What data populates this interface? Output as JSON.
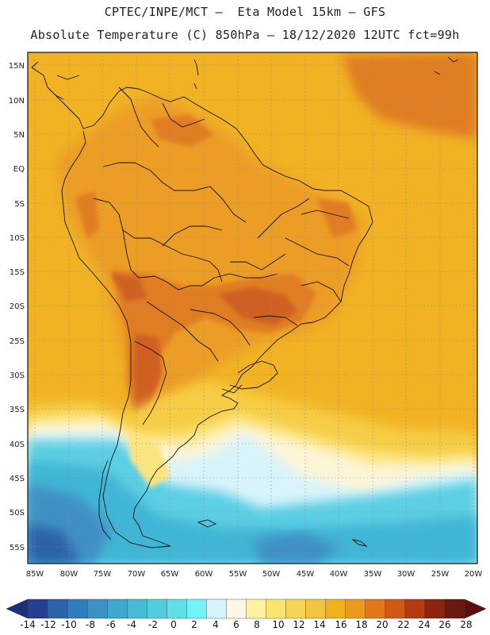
{
  "title_line1": "CPTEC/INPE/MCT –  Eta Model 15km – GFS",
  "title_line2": "Absolute Temperature (C) 850hPa – 18/12/2020 12UTC fct=99h",
  "lat_labels": [
    "15N",
    "10N",
    "5N",
    "EQ",
    "5S",
    "10S",
    "15S",
    "20S",
    "25S",
    "30S",
    "35S",
    "40S",
    "45S",
    "50S",
    "55S"
  ],
  "lon_labels": [
    "85W",
    "80W",
    "75W",
    "70W",
    "65W",
    "60W",
    "55W",
    "50W",
    "45W",
    "40W",
    "35W",
    "30W",
    "25W",
    "20W"
  ],
  "colorbar": {
    "labels": [
      "-14",
      "-12",
      "-10",
      "-8",
      "-6",
      "-4",
      "-2",
      "0",
      "2",
      "4",
      "6",
      "8",
      "10",
      "12",
      "14",
      "16",
      "18",
      "20",
      "22",
      "24",
      "26",
      "28"
    ],
    "colors": [
      "#263f93",
      "#2b63a9",
      "#2f7dbb",
      "#3b92c4",
      "#3ea8cd",
      "#44bcd6",
      "#52cde0",
      "#5fdfe9",
      "#74f3f6",
      "#d6f5fa",
      "#fdf8e6",
      "#fdf2a0",
      "#fbe46d",
      "#f7d455",
      "#f3c43e",
      "#f0b21c",
      "#ec9a1d",
      "#e1761a",
      "#d25818",
      "#b43a12",
      "#8e2410",
      "#6b1810"
    ],
    "left_arrow_color": "#1e2f7a",
    "right_arrow_color": "#5b0f12"
  },
  "map_colors": {
    "ocean_warm": "#f1b324",
    "land_warm": "#ec9d26",
    "hot": "#e07d20",
    "very_hot": "#cf6121",
    "mid_yellow": "#f6cd45",
    "light_yellow": "#fbe580",
    "cream": "#fdf5d8",
    "pale_cyan": "#d8f4fa",
    "cyan": "#5ccfe4",
    "teal": "#3fb6d6",
    "blue": "#3f90c6",
    "deep_blue": "#2c63a8"
  }
}
